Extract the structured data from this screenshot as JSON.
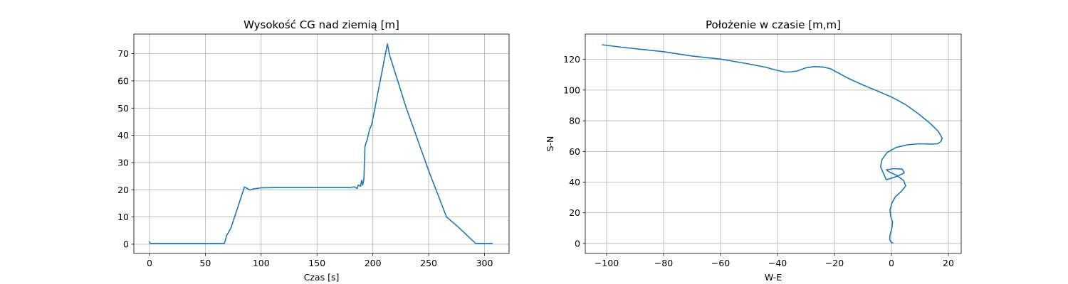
{
  "chart_data": [
    {
      "type": "line",
      "title": "Wysokość CG nad ziemią [m]",
      "xlabel": "Czas [s]",
      "ylabel": "",
      "xlim": [
        -14,
        322
      ],
      "ylim": [
        -3.4,
        77.2
      ],
      "xticks": [
        0,
        50,
        100,
        150,
        200,
        250,
        300
      ],
      "yticks": [
        0,
        10,
        20,
        30,
        40,
        50,
        60,
        70
      ],
      "grid": true,
      "color": "#1f77b4",
      "series": [
        {
          "x": [
            0,
            1,
            67,
            68,
            69,
            71,
            73,
            85,
            88,
            90,
            94,
            100,
            110,
            150,
            180,
            183,
            186,
            187,
            188,
            189,
            190,
            191,
            192,
            193,
            195,
            197,
            199,
            200,
            213,
            215,
            230,
            250,
            266,
            276,
            285,
            292,
            307
          ],
          "y": [
            0.8,
            0.3,
            0.3,
            1.5,
            3.2,
            4.5,
            6,
            21,
            20.4,
            19.9,
            20.4,
            20.7,
            20.8,
            20.8,
            20.8,
            21.1,
            20.5,
            21.8,
            21.5,
            21.3,
            23.5,
            21.7,
            24,
            36,
            38.5,
            42,
            44,
            46,
            73.6,
            69.5,
            50,
            27,
            10,
            6.5,
            3,
            0.3,
            0.3
          ]
        }
      ]
    },
    {
      "type": "line",
      "title": "Położenie w czasie [m,m]",
      "xlabel": "W-E",
      "ylabel": "S-N",
      "xlim": [
        -107.5,
        24.5
      ],
      "ylim": [
        -6.5,
        136.5
      ],
      "xticks": [
        -100,
        -80,
        -60,
        -40,
        -20,
        0,
        20
      ],
      "yticks": [
        0,
        20,
        40,
        60,
        80,
        100,
        120
      ],
      "grid": true,
      "color": "#1f77b4",
      "series": [
        {
          "x": [
            0.5,
            0,
            -0.6,
            -0.5,
            0.1,
            0.4,
            -0.3,
            -0.5,
            0.2,
            1.4,
            3.5,
            5,
            4.3,
            1.8,
            -0.6,
            -1.8,
            0.7,
            3.8,
            4.5,
            2,
            -1.8,
            -3.8,
            -3.3,
            -1.5,
            1.5,
            5.5,
            9.7,
            13.8,
            16.2,
            17.4,
            17.8,
            16.5,
            13.5,
            9.5,
            5,
            0,
            -5,
            -10,
            -15,
            -18.5,
            -21.5,
            -24,
            -27,
            -30,
            -33,
            -35.5,
            -37.5,
            -40,
            -44,
            -50,
            -60,
            -70,
            -80,
            -90,
            -95,
            -101.5
          ],
          "y": [
            0.5,
            0.5,
            2.5,
            5.5,
            9.5,
            14,
            18,
            22,
            26.5,
            30.5,
            34,
            37.5,
            41,
            44.5,
            46.5,
            48,
            48.8,
            48.5,
            46,
            43.8,
            41.5,
            50,
            54.8,
            59.3,
            62.5,
            64.3,
            65,
            64.8,
            65,
            66.5,
            68.7,
            73,
            78.5,
            84.5,
            90.5,
            95.5,
            99.5,
            103.3,
            107.5,
            111,
            114,
            115,
            115.3,
            114.5,
            112.5,
            111.8,
            111.8,
            112.8,
            114.8,
            117,
            120.2,
            122.2,
            125,
            127,
            128,
            129.5
          ]
        }
      ]
    }
  ]
}
